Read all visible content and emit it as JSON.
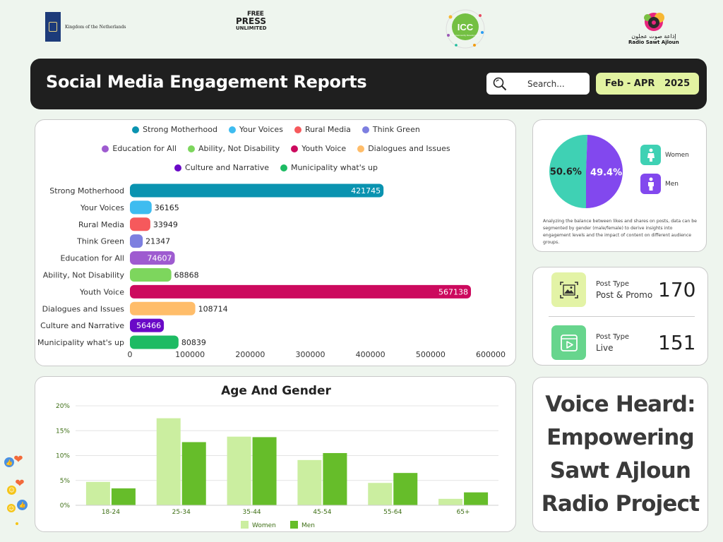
{
  "logos": {
    "netherlands": "Kingdom of the Netherlands",
    "free_press": {
      "top": "FREE",
      "middle": "PRESS",
      "bottom": "UNLIMITED"
    },
    "icc": {
      "abbr": "ICC",
      "sub": "For Community Development"
    },
    "radio": {
      "arabic": "إذاعة صوت عجلون",
      "name": "Radio Sawt Ajloun"
    }
  },
  "header": {
    "title": "Social Media Engagement Reports",
    "search_placeholder": "Search...",
    "date_range": "Feb - APR   2025"
  },
  "engagement_chart": {
    "chart_data": {
      "type": "bar",
      "orientation": "horizontal",
      "categories": [
        "Strong Motherhood",
        "Your Voices",
        "Rural Media",
        "Think Green",
        "Education for All",
        "Ability, Not Disability",
        "Youth Voice",
        "Dialogues and Issues",
        "Culture and Narrative",
        "Municipality what's up"
      ],
      "values": [
        421745,
        36165,
        33949,
        21347,
        74607,
        68868,
        567138,
        108714,
        56466,
        80839
      ],
      "colors": [
        "#0a93b0",
        "#3ebcf0",
        "#f6595c",
        "#7d7fe0",
        "#9e5bd0",
        "#7dd65d",
        "#cc0a5e",
        "#ffbd6a",
        "#6a09c7",
        "#1dbb63"
      ],
      "value_label_colors": [
        "#ffffff",
        "#222222",
        "#222222",
        "#222222",
        "#ffffff",
        "#222222",
        "#ffffff",
        "#222222",
        "#ffffff",
        "#222222"
      ],
      "xlim": [
        0,
        600000
      ],
      "xticks": [
        "0",
        "100000",
        "200000",
        "300000",
        "400000",
        "500000",
        "600000"
      ],
      "xtick_values": [
        0,
        100000,
        200000,
        300000,
        400000,
        500000,
        600000
      ],
      "legend": [
        [
          "Strong Motherhood",
          "Your Voices",
          "Rural Media",
          "Think Green"
        ],
        [
          "Education for All",
          "Ability, Not Disability",
          "Youth Voice",
          "Dialogues and Issues"
        ],
        [
          "Culture and Narrative",
          "Municipality what's up"
        ]
      ],
      "legend_colors": [
        [
          "#0a93b0",
          "#3ebcf0",
          "#f6595c",
          "#7d7fe0"
        ],
        [
          "#9e5bd0",
          "#7dd65d",
          "#cc0a5e",
          "#ffbd6a"
        ],
        [
          "#6a09c7",
          "#1dbb63"
        ]
      ]
    }
  },
  "gender_split": {
    "chart_data": {
      "type": "pie",
      "slices": [
        {
          "name": "Women",
          "value": 50.6,
          "label": "50.6%",
          "color": "#3fd1b4"
        },
        {
          "name": "Men",
          "value": 49.4,
          "label": "49.4%",
          "color": "#8248ee"
        }
      ]
    },
    "legend_women": "Women",
    "legend_men": "Men",
    "note": "Analyzing the balance between likes and shares on posts, data can be segmented by gender (male/female) to derive insights into engagement levels and the impact of content on different audience groups."
  },
  "post_types": [
    {
      "label": "Post Type",
      "type": "Post & Promo",
      "count": "170",
      "icon": "image-icon",
      "bg": "#e3f3a6"
    },
    {
      "label": "Post Type",
      "type": "Live",
      "count": "151",
      "icon": "video-play-icon",
      "bg": "#67d58d"
    }
  ],
  "age_gender": {
    "chart_data": {
      "type": "bar",
      "title": "Age And Gender",
      "categories": [
        "18-24",
        "25-34",
        "35-44",
        "45-54",
        "55-64",
        "65+"
      ],
      "series": [
        {
          "name": "Women",
          "values": [
            4.7,
            17.5,
            13.8,
            9.1,
            4.5,
            1.3
          ],
          "color": "#cbeea0"
        },
        {
          "name": "Men",
          "values": [
            3.4,
            12.7,
            13.7,
            10.5,
            6.5,
            2.6
          ],
          "color": "#66bd2a"
        }
      ],
      "ylim": [
        0,
        20
      ],
      "yticks": [
        "0%",
        "5%",
        "10%",
        "15%",
        "20%"
      ],
      "ytick_values": [
        0,
        5,
        10,
        15,
        20
      ]
    }
  },
  "quote": "Voice Heard: Empowering Sawt Ajloun Radio Project"
}
